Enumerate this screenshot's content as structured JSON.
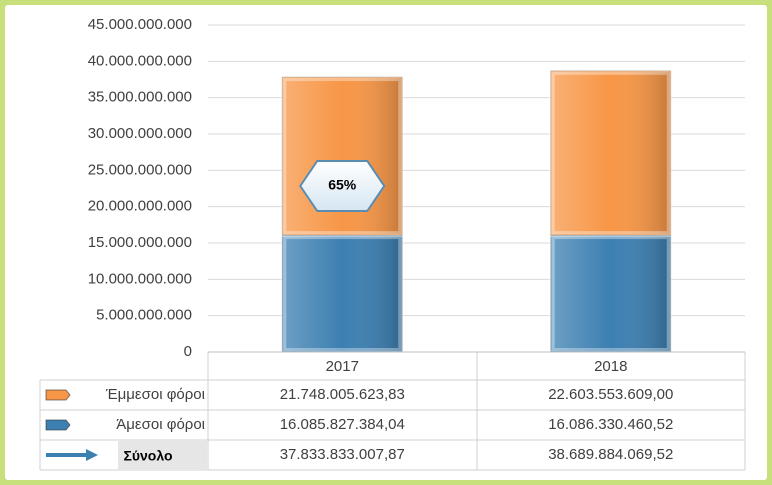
{
  "chart_data": {
    "type": "bar",
    "stacked": true,
    "categories": [
      "2017",
      "2018"
    ],
    "series": [
      {
        "name": "Άμεσοι φόροι",
        "color": "#3c7fb1",
        "values": [
          16085827384.04,
          16086330460.52
        ],
        "value_labels": [
          "16.085.827.384,04",
          "16.086.330.460,52"
        ]
      },
      {
        "name": "Έμμεσοι φόροι",
        "color": "#f79646",
        "values": [
          21748005623.83,
          22603553609.0
        ],
        "value_labels": [
          "21.748.005.623,83",
          "22.603.553.609,00"
        ]
      }
    ],
    "totals": {
      "name": "Σύνολο",
      "color": "#3c7fb1",
      "values": [
        37833833007.87,
        38689884069.52
      ],
      "value_labels": [
        "37.833.833.007,87",
        "38.689.884.069,52"
      ]
    },
    "annotations": [
      {
        "text": "65%",
        "category": 0
      }
    ],
    "ylim": [
      0,
      45000000000
    ],
    "yticks": [
      0,
      {
        "value": 5000000000,
        "label": "5.000.000.000"
      },
      {
        "value": 10000000000,
        "label": "10.000.000.000"
      },
      {
        "value": 15000000000,
        "label": "15.000.000.000"
      },
      {
        "value": 20000000000,
        "label": "20.000.000.000"
      },
      {
        "value": 25000000000,
        "label": "25.000.000.000"
      },
      {
        "value": 30000000000,
        "label": "30.000.000.000"
      },
      {
        "value": 35000000000,
        "label": "35.000.000.000"
      },
      {
        "value": 40000000000,
        "label": "40.000.000.000"
      },
      {
        "value": 45000000000,
        "label": "45.000.000.000"
      }
    ],
    "grid": true
  }
}
